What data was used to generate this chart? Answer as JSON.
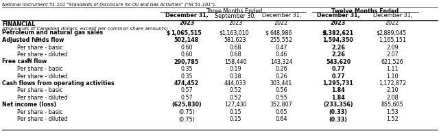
{
  "top_text": "National Instrument 51-101 \"Standards of Disclosure for Oil and Gas Activities\" (\"NI 51-101\").",
  "header_group1": "Three Months Ended",
  "header_group2": "Twelve Months Ended",
  "col_headers": [
    "December 31,\n2023",
    "September 30,\n2023",
    "December 31,\n2022",
    "December 31,\n2023",
    "December 31,\n2022"
  ],
  "col_header_bold": [
    true,
    false,
    false,
    true,
    false
  ],
  "section_label": "FINANCIAL",
  "section_sublabel": "(thousands of Canadian dollars, except per common share amounts)",
  "rows": [
    {
      "label": "Petroleum and natural gas sales",
      "bold": true,
      "dollar": true,
      "indent": false,
      "values": [
        "1,065,515",
        "1,163,010",
        "648,986",
        "3,382,621",
        "2,889,045"
      ],
      "bold_cols": [
        0,
        3
      ]
    },
    {
      "label": "Adjusted funds flow",
      "footnote": "(1)",
      "bold": true,
      "dollar": false,
      "indent": false,
      "values": [
        "502,148",
        "581,623",
        "255,552",
        "1,594,350",
        "1,165,151"
      ],
      "bold_cols": [
        0,
        3
      ]
    },
    {
      "label": "Per share - basic",
      "bold": false,
      "indent": true,
      "dollar": false,
      "values": [
        "0.60",
        "0.68",
        "0.47",
        "2.26",
        "2.09"
      ],
      "bold_cols": [
        3
      ]
    },
    {
      "label": "Per share - diluted",
      "bold": false,
      "indent": true,
      "dollar": false,
      "values": [
        "0.60",
        "0.68",
        "0.46",
        "2.26",
        "2.07"
      ],
      "bold_cols": [
        3
      ]
    },
    {
      "label": "Free cash flow",
      "footnote": "(2)",
      "bold": true,
      "dollar": false,
      "indent": false,
      "values": [
        "290,785",
        "158,440",
        "143,324",
        "543,620",
        "621,526"
      ],
      "bold_cols": [
        0,
        3
      ]
    },
    {
      "label": "Per share - basic",
      "bold": false,
      "indent": true,
      "dollar": false,
      "values": [
        "0.35",
        "0.19",
        "0.26",
        "0.77",
        "1.11"
      ],
      "bold_cols": [
        3
      ]
    },
    {
      "label": "Per share - diluted",
      "bold": false,
      "indent": true,
      "dollar": false,
      "values": [
        "0.35",
        "0.18",
        "0.26",
        "0.77",
        "1.10"
      ],
      "bold_cols": [
        3
      ]
    },
    {
      "label": "Cash flows from operating activities",
      "bold": true,
      "dollar": false,
      "indent": false,
      "values": [
        "474,452",
        "444,033",
        "303,441",
        "1,295,731",
        "1,172,872"
      ],
      "bold_cols": [
        0,
        3
      ]
    },
    {
      "label": "Per share - basic",
      "bold": false,
      "indent": true,
      "dollar": false,
      "values": [
        "0.57",
        "0.52",
        "0.56",
        "1.84",
        "2.10"
      ],
      "bold_cols": [
        3
      ]
    },
    {
      "label": "Per share - diluted",
      "bold": false,
      "indent": true,
      "dollar": false,
      "values": [
        "0.57",
        "0.52",
        "0.55",
        "1.84",
        "2.08"
      ],
      "bold_cols": [
        3
      ]
    },
    {
      "label": "Net income (loss)",
      "bold": true,
      "dollar": false,
      "indent": false,
      "values": [
        "(625,830)",
        "127,430",
        "352,807",
        "(233,356)",
        "855,605"
      ],
      "bold_cols": [
        0,
        3
      ]
    },
    {
      "label": "Per share - basic",
      "bold": false,
      "indent": true,
      "dollar": false,
      "values": [
        "(0.75)",
        "0.15",
        "0.65",
        "(0.33)",
        "1.53"
      ],
      "bold_cols": [
        3
      ]
    },
    {
      "label": "Per share - diluted",
      "bold": false,
      "indent": true,
      "dollar": false,
      "values": [
        "(0.75)",
        "0.15",
        "0.64",
        "(0.33)",
        "1.52"
      ],
      "bold_cols": [
        3
      ]
    }
  ],
  "bg_color": "#ffffff",
  "text_color": "#000000",
  "font_size": 5.8,
  "header_font_size": 5.8
}
